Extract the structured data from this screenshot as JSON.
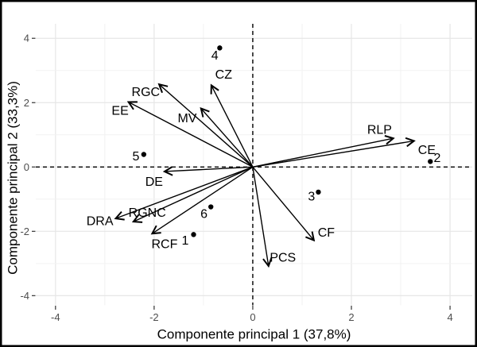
{
  "figure": {
    "background": "#ffffff",
    "border_color": "#000000"
  },
  "chart_data": {
    "type": "scatter",
    "subtype": "pca-biplot",
    "title": "",
    "xlabel": "Componente principal 1 (37,8%)",
    "ylabel": "Componente principal 2 (33,3%)",
    "xlim": [
      -4.4,
      4.45
    ],
    "ylim": [
      -4.3,
      4.45
    ],
    "x_ticks": [
      -4,
      -2,
      0,
      2,
      4
    ],
    "y_ticks": [
      -4,
      -2,
      0,
      2,
      4
    ],
    "grid": "on",
    "minor_grid": "on",
    "zero_lines": "dashed",
    "legend": "none",
    "colors": {
      "foreground": "#000000",
      "tick_text": "#4d4d4d",
      "grid_major": "#e6e6e6",
      "grid_minor": "#f2f2f2",
      "background": "#ffffff"
    },
    "vectors": [
      {
        "label": "EE",
        "x": -2.52,
        "y": 2.02,
        "label_pos": [
          -2.69,
          1.74
        ]
      },
      {
        "label": "RGC",
        "x": -1.9,
        "y": 2.57,
        "label_pos": [
          -2.17,
          2.32
        ]
      },
      {
        "label": "MV",
        "x": -1.05,
        "y": 1.82,
        "label_pos": [
          -1.33,
          1.5
        ]
      },
      {
        "label": "CZ",
        "x": -0.84,
        "y": 2.54,
        "label_pos": [
          -0.59,
          2.86
        ]
      },
      {
        "label": "RLP",
        "x": 2.85,
        "y": 0.89,
        "label_pos": [
          2.57,
          1.14
        ]
      },
      {
        "label": "CE",
        "x": 3.27,
        "y": 0.81,
        "label_pos": [
          3.53,
          0.51
        ]
      },
      {
        "label": "DE",
        "x": -1.79,
        "y": -0.14,
        "label_pos": [
          -2.0,
          -0.48
        ]
      },
      {
        "label": "DRA",
        "x": -2.78,
        "y": -1.6,
        "label_pos": [
          -3.1,
          -1.7
        ]
      },
      {
        "label": "RGNC",
        "x": -2.42,
        "y": -1.7,
        "label_pos": [
          -2.14,
          -1.44
        ]
      },
      {
        "label": "RCF",
        "x": -2.04,
        "y": -2.07,
        "label_pos": [
          -1.79,
          -2.41
        ]
      },
      {
        "label": "CF",
        "x": 1.24,
        "y": -2.28,
        "label_pos": [
          1.49,
          -2.06
        ]
      },
      {
        "label": "PCS",
        "x": 0.32,
        "y": -3.08,
        "label_pos": [
          0.61,
          -2.83
        ]
      }
    ],
    "points": [
      {
        "label": "1",
        "x": -1.2,
        "y": -2.1,
        "label_pos": [
          -1.37,
          -2.3
        ]
      },
      {
        "label": "2",
        "x": 3.6,
        "y": 0.17,
        "label_pos": [
          3.74,
          0.27
        ]
      },
      {
        "label": "3",
        "x": 1.33,
        "y": -0.78,
        "label_pos": [
          1.19,
          -0.93
        ]
      },
      {
        "label": "4",
        "x": -0.67,
        "y": 3.7,
        "label_pos": [
          -0.77,
          3.45
        ]
      },
      {
        "label": "5",
        "x": -2.21,
        "y": 0.39,
        "label_pos": [
          -2.37,
          0.32
        ]
      },
      {
        "label": "6",
        "x": -0.85,
        "y": -1.24,
        "label_pos": [
          -0.99,
          -1.48
        ]
      }
    ]
  }
}
